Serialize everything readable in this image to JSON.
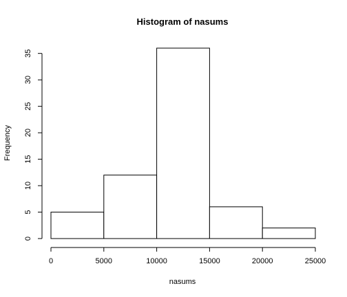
{
  "chart_data": {
    "type": "bar",
    "title": "Histogram of nasums",
    "xlabel": "nasums",
    "ylabel": "Frequency",
    "bins": [
      {
        "start": 0,
        "end": 5000,
        "count": 5
      },
      {
        "start": 5000,
        "end": 10000,
        "count": 12
      },
      {
        "start": 10000,
        "end": 15000,
        "count": 36
      },
      {
        "start": 15000,
        "end": 20000,
        "count": 6
      },
      {
        "start": 20000,
        "end": 25000,
        "count": 2
      }
    ],
    "xlim": [
      0,
      25000
    ],
    "ylim": [
      0,
      36
    ],
    "xticks": [
      "0",
      "5000",
      "10000",
      "15000",
      "20000",
      "25000"
    ],
    "yticks": [
      "0",
      "5",
      "10",
      "15",
      "20",
      "25",
      "30",
      "35"
    ],
    "grid": false
  }
}
